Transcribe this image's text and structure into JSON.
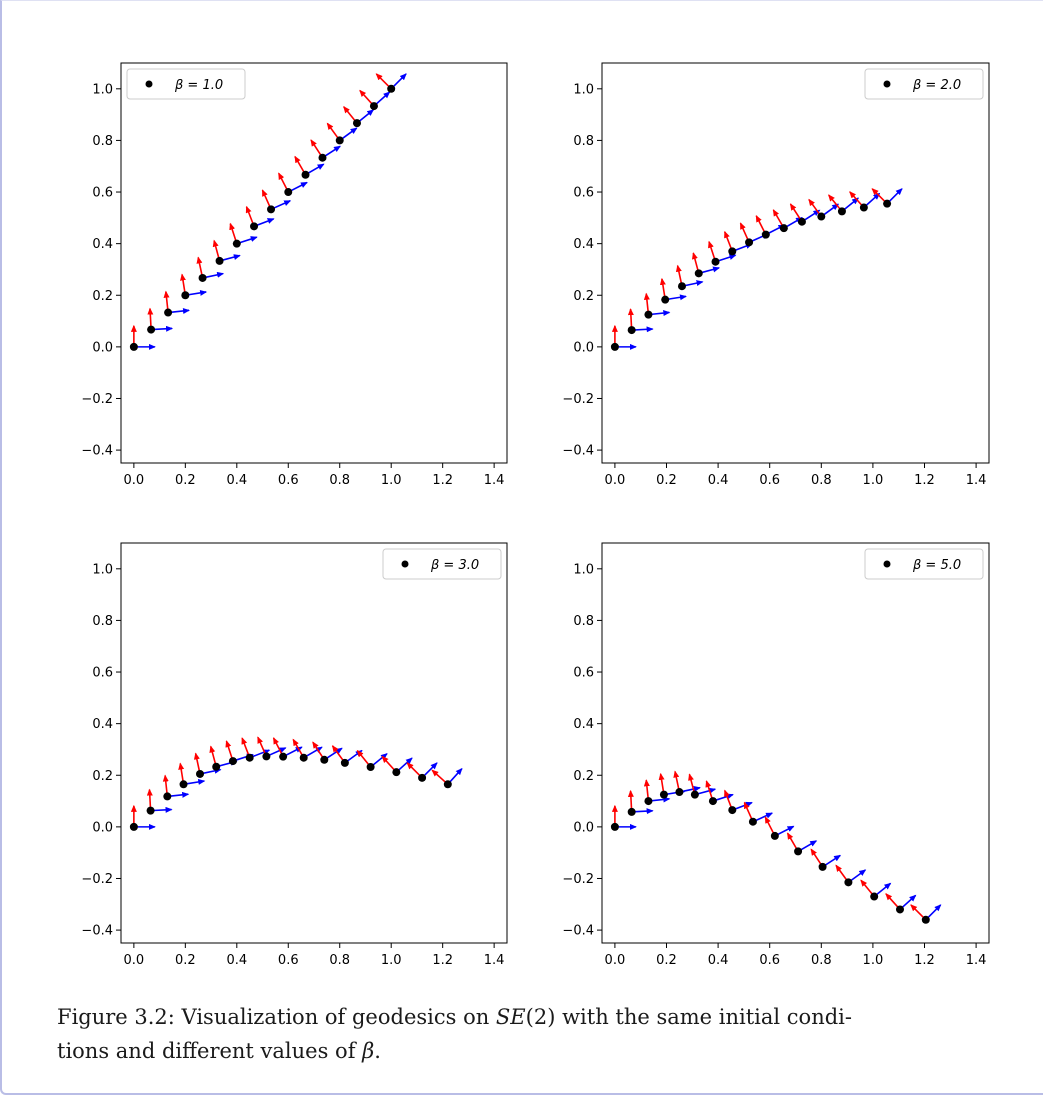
{
  "chart_data": [
    {
      "type": "scatter",
      "legend": {
        "label": "β = 1.0",
        "position": "upper-left"
      },
      "xlim": [
        -0.05,
        1.45
      ],
      "ylim": [
        -0.45,
        1.1
      ],
      "xticks": [
        "0.0",
        "0.2",
        "0.4",
        "0.6",
        "0.8",
        "1.0",
        "1.2",
        "1.4"
      ],
      "yticks": [
        "−0.4",
        "−0.2",
        "0.0",
        "0.2",
        "0.4",
        "0.6",
        "0.8",
        "1.0"
      ],
      "points": [
        [
          0.0,
          0.0
        ],
        [
          0.067,
          0.067
        ],
        [
          0.133,
          0.133
        ],
        [
          0.2,
          0.2
        ],
        [
          0.267,
          0.267
        ],
        [
          0.333,
          0.333
        ],
        [
          0.4,
          0.4
        ],
        [
          0.467,
          0.467
        ],
        [
          0.533,
          0.533
        ],
        [
          0.6,
          0.6
        ],
        [
          0.667,
          0.667
        ],
        [
          0.733,
          0.733
        ],
        [
          0.8,
          0.8
        ],
        [
          0.867,
          0.867
        ],
        [
          0.933,
          0.933
        ],
        [
          1.0,
          1.0
        ]
      ],
      "headings_deg": [
        0,
        3,
        6,
        9,
        12,
        15,
        18,
        21,
        24,
        27,
        30,
        33,
        36,
        39,
        42,
        45
      ]
    },
    {
      "type": "scatter",
      "legend": {
        "label": "β = 2.0",
        "position": "upper-right"
      },
      "xlim": [
        -0.05,
        1.45
      ],
      "ylim": [
        -0.45,
        1.1
      ],
      "xticks": [
        "0.0",
        "0.2",
        "0.4",
        "0.6",
        "0.8",
        "1.0",
        "1.2",
        "1.4"
      ],
      "yticks": [
        "−0.4",
        "−0.2",
        "0.0",
        "0.2",
        "0.4",
        "0.6",
        "0.8",
        "1.0"
      ],
      "points": [
        [
          0.0,
          0.0
        ],
        [
          0.065,
          0.065
        ],
        [
          0.13,
          0.125
        ],
        [
          0.195,
          0.183
        ],
        [
          0.26,
          0.235
        ],
        [
          0.325,
          0.285
        ],
        [
          0.39,
          0.33
        ],
        [
          0.455,
          0.37
        ],
        [
          0.52,
          0.405
        ],
        [
          0.585,
          0.435
        ],
        [
          0.655,
          0.46
        ],
        [
          0.725,
          0.485
        ],
        [
          0.8,
          0.505
        ],
        [
          0.88,
          0.525
        ],
        [
          0.965,
          0.54
        ],
        [
          1.055,
          0.555
        ]
      ],
      "headings_deg": [
        0,
        3,
        6,
        9,
        12,
        15,
        18,
        21,
        24,
        27,
        30,
        33,
        36,
        39,
        42,
        45
      ]
    },
    {
      "type": "scatter",
      "legend": {
        "label": "β = 3.0",
        "position": "upper-right"
      },
      "xlim": [
        -0.05,
        1.45
      ],
      "ylim": [
        -0.45,
        1.1
      ],
      "xticks": [
        "0.0",
        "0.2",
        "0.4",
        "0.6",
        "0.8",
        "1.0",
        "1.2",
        "1.4"
      ],
      "yticks": [
        "−0.4",
        "−0.2",
        "0.0",
        "0.2",
        "0.4",
        "0.6",
        "0.8",
        "1.0"
      ],
      "points": [
        [
          0.0,
          0.0
        ],
        [
          0.065,
          0.063
        ],
        [
          0.13,
          0.118
        ],
        [
          0.193,
          0.165
        ],
        [
          0.257,
          0.205
        ],
        [
          0.32,
          0.233
        ],
        [
          0.385,
          0.255
        ],
        [
          0.45,
          0.268
        ],
        [
          0.515,
          0.273
        ],
        [
          0.58,
          0.272
        ],
        [
          0.66,
          0.268
        ],
        [
          0.74,
          0.26
        ],
        [
          0.82,
          0.248
        ],
        [
          0.92,
          0.232
        ],
        [
          1.02,
          0.212
        ],
        [
          1.12,
          0.19
        ],
        [
          1.22,
          0.165
        ]
      ],
      "headings_deg": [
        0,
        3,
        6,
        9,
        12,
        15,
        18,
        21,
        24,
        27,
        30,
        33,
        36,
        39,
        42,
        45,
        48
      ]
    },
    {
      "type": "scatter",
      "legend": {
        "label": "β = 5.0",
        "position": "upper-right"
      },
      "xlim": [
        -0.05,
        1.45
      ],
      "ylim": [
        -0.45,
        1.1
      ],
      "xticks": [
        "0.0",
        "0.2",
        "0.4",
        "0.6",
        "0.8",
        "1.0",
        "1.2",
        "1.4"
      ],
      "yticks": [
        "−0.4",
        "−0.2",
        "0.0",
        "0.2",
        "0.4",
        "0.6",
        "0.8",
        "1.0"
      ],
      "points": [
        [
          0.0,
          0.0
        ],
        [
          0.065,
          0.058
        ],
        [
          0.13,
          0.1
        ],
        [
          0.19,
          0.125
        ],
        [
          0.25,
          0.135
        ],
        [
          0.31,
          0.125
        ],
        [
          0.38,
          0.1
        ],
        [
          0.455,
          0.065
        ],
        [
          0.535,
          0.02
        ],
        [
          0.62,
          -0.035
        ],
        [
          0.71,
          -0.095
        ],
        [
          0.805,
          -0.155
        ],
        [
          0.905,
          -0.215
        ],
        [
          1.005,
          -0.27
        ],
        [
          1.105,
          -0.32
        ],
        [
          1.205,
          -0.36
        ]
      ],
      "headings_deg": [
        0,
        3,
        6,
        9,
        12,
        15,
        18,
        21,
        24,
        27,
        30,
        33,
        36,
        39,
        42,
        45
      ]
    }
  ],
  "caption": {
    "prefix": "Figure 3.2: Visualization of geodesics on ",
    "math": "SE",
    "math_suffix": "(2)",
    "middle": " with the same initial condi-",
    "line2_start": "tions and different values of ",
    "beta": "β",
    "end": "."
  },
  "colors": {
    "point": "#000000",
    "arrow_x": "#0000ff",
    "arrow_y": "#ff0000",
    "frame_border": "#b9bde6"
  }
}
